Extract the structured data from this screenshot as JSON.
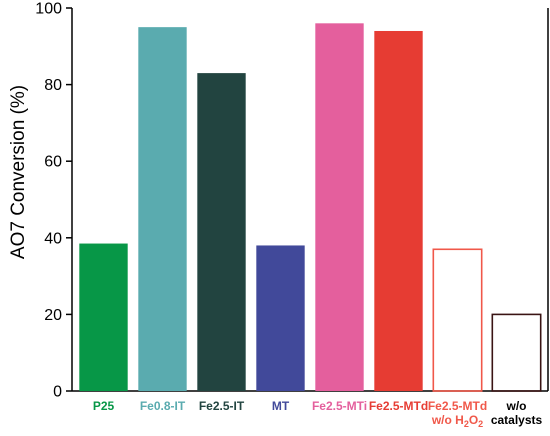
{
  "chart_data": {
    "type": "bar",
    "ylabel": "AO7 Conversion (%)",
    "xlabel": "",
    "ylim": [
      0,
      100
    ],
    "yticks": [
      0,
      20,
      40,
      60,
      80,
      100
    ],
    "grid": false,
    "categories": [
      {
        "lines": [
          "P25"
        ],
        "value": 38.5,
        "color": "#079747",
        "filled": true,
        "label_color": "#079747"
      },
      {
        "lines": [
          "Fe0.8-IT"
        ],
        "value": 95,
        "color": "#5aabaf",
        "filled": true,
        "label_color": "#5aabaf"
      },
      {
        "lines": [
          "Fe2.5-IT"
        ],
        "value": 83,
        "color": "#224440",
        "filled": true,
        "label_color": "#224440"
      },
      {
        "lines": [
          "MT"
        ],
        "value": 38,
        "color": "#41499a",
        "filled": true,
        "label_color": "#41499a"
      },
      {
        "lines": [
          "Fe2.5-MTi"
        ],
        "value": 96,
        "color": "#e45f9d",
        "filled": true,
        "label_color": "#e45f9d"
      },
      {
        "lines": [
          "Fe2.5-MTd"
        ],
        "value": 94,
        "color": "#e63c33",
        "filled": true,
        "label_color": "#e63c33"
      },
      {
        "lines": [
          "Fe2.5-MTd",
          "w/o H2O2"
        ],
        "value": 37,
        "color": "#f0584a",
        "filled": false,
        "label_color": "#f0584a"
      },
      {
        "lines": [
          "w/o",
          "catalysts"
        ],
        "value": 20,
        "color": "#3a1414",
        "filled": false,
        "label_color": "#000000"
      }
    ]
  }
}
